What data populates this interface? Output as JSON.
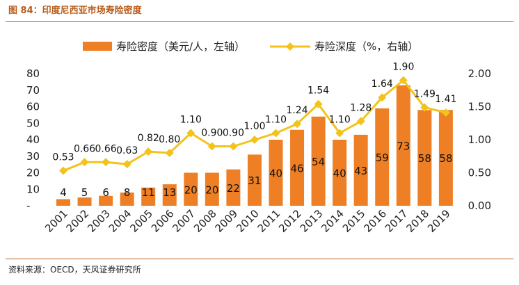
{
  "figure": {
    "title": "图 84：印度尼西亚市场寿险密度",
    "source": "资料来源：OECD，天风证券研究所"
  },
  "colors": {
    "bar": "#ee7f24",
    "line": "#f3c31c",
    "accent": "#b85c1a"
  },
  "chart_data": {
    "type": "bar",
    "categories": [
      "2001",
      "2002",
      "2003",
      "2004",
      "2005",
      "2006",
      "2007",
      "2008",
      "2009",
      "2010",
      "2011",
      "2012",
      "2013",
      "2014",
      "2015",
      "2016",
      "2017",
      "2018",
      "2019"
    ],
    "series": [
      {
        "name": "寿险密度（美元/人，左轴）",
        "kind": "bar",
        "axis": "left",
        "values": [
          4,
          5,
          6,
          8,
          11,
          13,
          20,
          20,
          22,
          31,
          40,
          46,
          54,
          40,
          43,
          59,
          73,
          58,
          58
        ]
      },
      {
        "name": "寿险深度（%，右轴）",
        "kind": "line",
        "axis": "right",
        "values": [
          0.53,
          0.66,
          0.66,
          0.63,
          0.82,
          0.8,
          1.1,
          0.9,
          0.9,
          1.0,
          1.1,
          1.24,
          1.54,
          1.1,
          1.28,
          1.64,
          1.9,
          1.49,
          1.41
        ],
        "labels": [
          "0.53",
          "0.66",
          "0.66",
          "0.63",
          "0.82",
          "0.80",
          "1.10",
          "0.90",
          "0.90",
          "1.00",
          "1.10",
          "1.24",
          "1.54",
          "1.10",
          "1.28",
          "1.64",
          "1.90",
          "1.49",
          "1.41"
        ]
      }
    ],
    "left_axis": {
      "ylim": [
        0,
        80
      ],
      "ticks": [
        "-",
        "10",
        "20",
        "30",
        "40",
        "50",
        "60",
        "70",
        "80"
      ]
    },
    "right_axis": {
      "ylim": [
        0,
        2.0
      ],
      "ticks": [
        "0.00",
        "0.50",
        "1.00",
        "1.50",
        "2.00"
      ]
    },
    "legend_position": "top"
  }
}
